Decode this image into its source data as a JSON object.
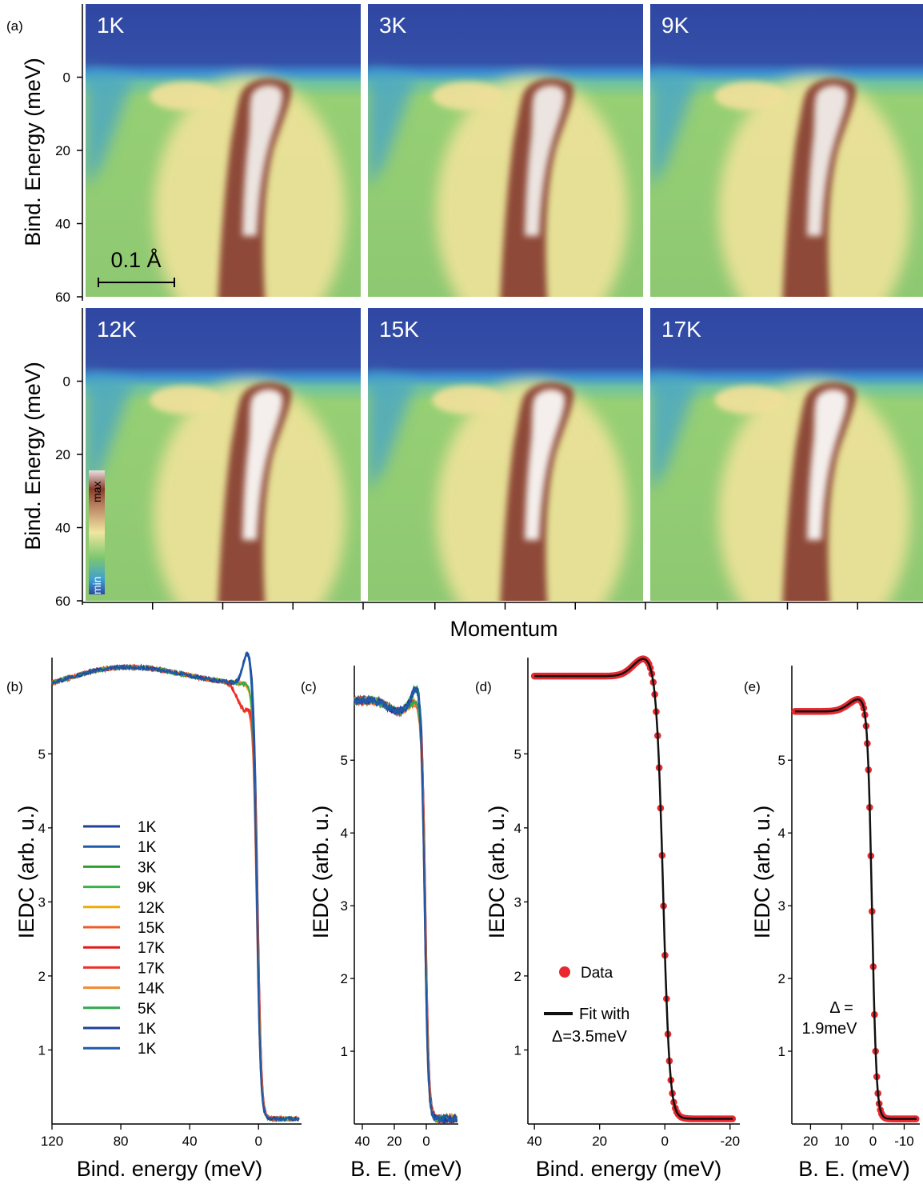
{
  "figure": {
    "panel_labels": [
      "(a)",
      "(b)",
      "(c)",
      "(d)",
      "(e)"
    ]
  },
  "chart_data": [
    {
      "panel": "(a)",
      "type": "heatmap",
      "ylabel": "Bind. Energy (meV)",
      "xlabel": "Momentum",
      "y_ticks": [
        "0",
        "20",
        "40",
        "60"
      ],
      "ylim": [
        -20,
        60
      ],
      "panels": [
        "1K",
        "3K",
        "9K",
        "12K",
        "15K",
        "17K"
      ],
      "scale_bar": "0.1 Å",
      "colorbar": {
        "max_label": "max",
        "min_label": "min"
      },
      "colormap": [
        "#2b4aa6",
        "#2f7fd0",
        "#3fb0d0",
        "#7ec86e",
        "#f0e6a0",
        "#c8a070",
        "#8a3a2a",
        "#ffffff"
      ]
    },
    {
      "panel": "(b)",
      "type": "line",
      "xlabel": "Bind. energy (meV)",
      "ylabel": "IEDC (arb. u.)",
      "x_ticks": [
        "120",
        "80",
        "40",
        "0"
      ],
      "y_ticks": [
        "1",
        "2",
        "3",
        "4",
        "5"
      ],
      "xlim": [
        120,
        -25
      ],
      "ylim": [
        0,
        6.3
      ],
      "legend": {
        "placement": "center-left"
      },
      "series": [
        {
          "name": "1K",
          "color": "#1f3f9a"
        },
        {
          "name": "1K",
          "color": "#1f5aa8"
        },
        {
          "name": "3K",
          "color": "#2ca02c"
        },
        {
          "name": "9K",
          "color": "#3cb04a"
        },
        {
          "name": "12K",
          "color": "#f2a900"
        },
        {
          "name": "15K",
          "color": "#f05a28"
        },
        {
          "name": "17K",
          "color": "#e31a1c"
        },
        {
          "name": "17K",
          "color": "#e8332a"
        },
        {
          "name": "14K",
          "color": "#f28a30"
        },
        {
          "name": "5K",
          "color": "#33a852"
        },
        {
          "name": "1K",
          "color": "#1f3f9a"
        },
        {
          "name": "1K",
          "color": "#1f5aa8"
        }
      ],
      "shape": {
        "low_E_level": 5.85,
        "hump_center": 75,
        "hump_height": 0.25,
        "edge": 0.5,
        "edge_width": 1.1
      }
    },
    {
      "panel": "(c)",
      "type": "line",
      "xlabel": "B. E. (meV)",
      "ylabel": "IEDC (arb. u.)",
      "x_ticks": [
        "40",
        "20",
        "0"
      ],
      "y_ticks": [
        "1",
        "2",
        "3",
        "4",
        "5"
      ],
      "xlim": [
        45,
        -20
      ],
      "ylim": [
        0,
        6.3
      ],
      "series_colors": [
        "#1f3f9a",
        "#1f5aa8",
        "#2ca02c",
        "#3cb04a",
        "#f2a900",
        "#f05a28",
        "#e31a1c",
        "#e8332a",
        "#f28a30",
        "#33a852",
        "#1f3f9a",
        "#1f5aa8"
      ],
      "shape": {
        "low_E_level": 5.75,
        "edge": 0.5,
        "edge_width": 1.1
      }
    },
    {
      "panel": "(d)",
      "type": "scatter",
      "xlabel": "Bind. energy (meV)",
      "ylabel": "IEDC (arb. u.)",
      "x_ticks": [
        "40",
        "20",
        "0",
        "-20"
      ],
      "y_ticks": [
        "1",
        "2",
        "3",
        "4",
        "5"
      ],
      "xlim": [
        42,
        -23
      ],
      "ylim": [
        0,
        6.3
      ],
      "legend": {
        "placement": "lower-left",
        "data_label": "Data",
        "fit_label_line1": "Fit with",
        "fit_label_line2": "Δ=3.5meV"
      },
      "series": [
        {
          "name": "Data",
          "kind": "points",
          "color": "#e8282e"
        },
        {
          "name": "Fit",
          "kind": "line",
          "color": "#111111"
        }
      ],
      "shape": {
        "level": 5.98,
        "peak_E": 6,
        "peak_height": 0.25,
        "edge": 0.5,
        "edge_width": 1.0
      }
    },
    {
      "panel": "(e)",
      "type": "scatter",
      "xlabel": "B. E. (meV)",
      "ylabel": "IEDC (arb. u.)",
      "x_ticks": [
        "20",
        "10",
        "0",
        "-10"
      ],
      "y_ticks": [
        "1",
        "2",
        "3",
        "4",
        "5"
      ],
      "xlim": [
        26,
        -15
      ],
      "ylim": [
        0,
        6.3
      ],
      "annotation": {
        "line1": "Δ =",
        "line2": "1.9meV"
      },
      "series": [
        {
          "name": "Data",
          "kind": "points",
          "color": "#e8282e"
        },
        {
          "name": "Fit",
          "kind": "line",
          "color": "#111111"
        }
      ],
      "shape": {
        "level": 5.6,
        "peak_E": 4,
        "peak_height": 0.18,
        "edge": 0.3,
        "edge_width": 0.7
      }
    }
  ]
}
